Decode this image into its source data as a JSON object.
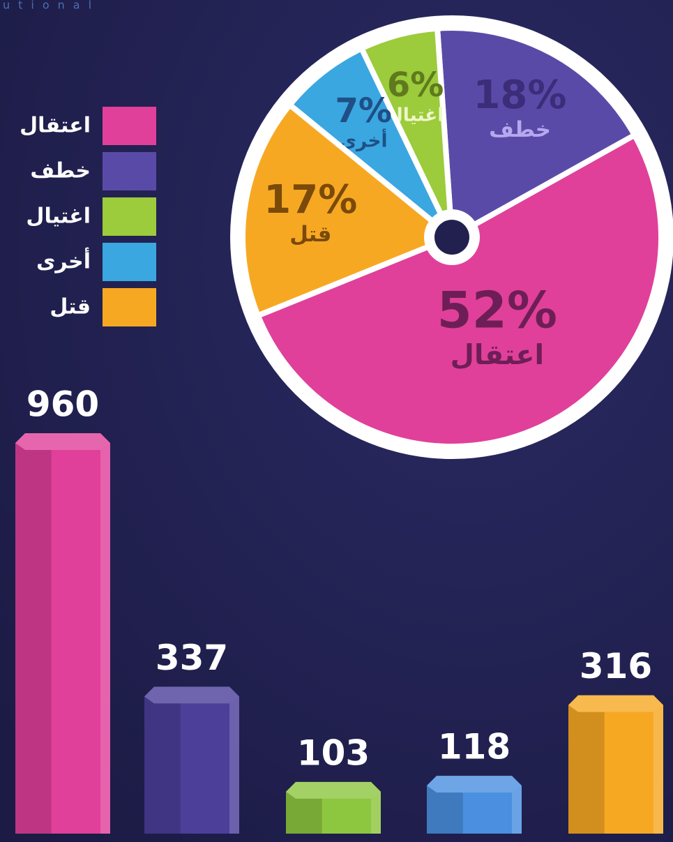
{
  "watermark": "utional",
  "chart_data": [
    {
      "type": "pie",
      "categories": [
        "اعتقال",
        "خطف",
        "اغتيال",
        "أخرى",
        "قتل"
      ],
      "values": [
        52,
        18,
        6,
        7,
        17
      ],
      "value_labels": [
        "52%",
        "18%",
        "6%",
        "7%",
        "17%"
      ],
      "colors": [
        "#e0409a",
        "#5a4aa8",
        "#9ccb3b",
        "#3aa7e0",
        "#f7a823"
      ],
      "legend": true
    },
    {
      "type": "bar",
      "values": [
        960,
        337,
        103,
        118,
        316
      ],
      "colors": [
        "#e0409a",
        "#4b3f9a",
        "#8dc63f",
        "#4a8fe0",
        "#f7a823"
      ]
    }
  ]
}
